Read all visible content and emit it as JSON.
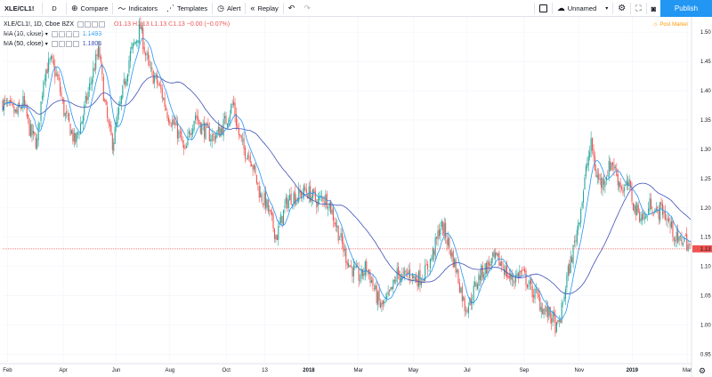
{
  "toolbar": {
    "symbol": "XLE/CL1!",
    "interval": "D",
    "compare": "Compare",
    "indicators": "Indicators",
    "templates": "Templates",
    "alert": "Alert",
    "replay": "Replay",
    "layout_name": "Unnamed",
    "publish": "Publish",
    "icons": [
      "plus-circle-icon",
      "indicators-icon",
      "templates-icon",
      "alert-clock-icon",
      "replay-icon",
      "undo-icon",
      "redo-icon",
      "square-icon",
      "cloud-icon",
      "chevron-down-icon",
      "gear-icon",
      "fullscreen-icon",
      "camera-icon"
    ]
  },
  "legend": {
    "title": "XLE/CL1!, 1D, Cboe BZX",
    "open": "O1.13",
    "high": "H1.13",
    "low": "L1.13",
    "close": "C1.13",
    "change": "−0.00 (−0.07%)",
    "ma10_label": "MA (10, close)",
    "ma10_value": "1.1493",
    "ma50_label": "MA (50, close)",
    "ma50_value": "1.1806",
    "post_market": "Post Market"
  },
  "colors": {
    "up": "#26a69a",
    "down": "#ef5350",
    "ma10": "#2196f3",
    "ma50": "#3f51b5",
    "price_line": "#ef5350",
    "accent": "#2196f3"
  },
  "chart_data": {
    "type": "candlestick",
    "y_ticks": [
      "1.50",
      "1.45",
      "1.40",
      "1.35",
      "1.30",
      "1.25",
      "1.20",
      "1.15",
      "1.10",
      "1.05",
      "1.00",
      "0.95"
    ],
    "ylim": [
      0.94,
      1.52
    ],
    "current_price_label": "1.13",
    "current_price": 1.13,
    "x_ticks": [
      {
        "label": "Feb",
        "t": 0.007,
        "bold": false
      },
      {
        "label": "Apr",
        "t": 0.088,
        "bold": false
      },
      {
        "label": "Jun",
        "t": 0.165,
        "bold": false
      },
      {
        "label": "Aug",
        "t": 0.243,
        "bold": false
      },
      {
        "label": "Oct",
        "t": 0.325,
        "bold": false
      },
      {
        "label": "13",
        "t": 0.381,
        "bold": false
      },
      {
        "label": "2018",
        "t": 0.445,
        "bold": true
      },
      {
        "label": "Mar",
        "t": 0.517,
        "bold": false
      },
      {
        "label": "May",
        "t": 0.597,
        "bold": false
      },
      {
        "label": "Jul",
        "t": 0.675,
        "bold": false
      },
      {
        "label": "Sep",
        "t": 0.758,
        "bold": false
      },
      {
        "label": "Nov",
        "t": 0.838,
        "bold": false
      },
      {
        "label": "2019",
        "t": 0.915,
        "bold": true
      },
      {
        "label": "Mar",
        "t": 0.995,
        "bold": false
      }
    ],
    "close_path": [
      [
        0.0,
        1.38
      ],
      [
        0.01,
        1.37
      ],
      [
        0.02,
        1.36
      ],
      [
        0.03,
        1.38
      ],
      [
        0.04,
        1.33
      ],
      [
        0.05,
        1.31
      ],
      [
        0.06,
        1.43
      ],
      [
        0.07,
        1.45
      ],
      [
        0.08,
        1.42
      ],
      [
        0.09,
        1.36
      ],
      [
        0.1,
        1.33
      ],
      [
        0.105,
        1.31
      ],
      [
        0.115,
        1.35
      ],
      [
        0.125,
        1.4
      ],
      [
        0.133,
        1.44
      ],
      [
        0.14,
        1.47
      ],
      [
        0.148,
        1.38
      ],
      [
        0.155,
        1.33
      ],
      [
        0.16,
        1.31
      ],
      [
        0.165,
        1.34
      ],
      [
        0.175,
        1.4
      ],
      [
        0.185,
        1.46
      ],
      [
        0.195,
        1.49
      ],
      [
        0.2,
        1.51
      ],
      [
        0.208,
        1.46
      ],
      [
        0.215,
        1.43
      ],
      [
        0.222,
        1.42
      ],
      [
        0.23,
        1.4
      ],
      [
        0.24,
        1.36
      ],
      [
        0.25,
        1.34
      ],
      [
        0.258,
        1.32
      ],
      [
        0.265,
        1.29
      ],
      [
        0.272,
        1.33
      ],
      [
        0.28,
        1.36
      ],
      [
        0.288,
        1.34
      ],
      [
        0.296,
        1.33
      ],
      [
        0.305,
        1.32
      ],
      [
        0.315,
        1.33
      ],
      [
        0.325,
        1.35
      ],
      [
        0.335,
        1.38
      ],
      [
        0.342,
        1.33
      ],
      [
        0.35,
        1.3
      ],
      [
        0.36,
        1.29
      ],
      [
        0.368,
        1.25
      ],
      [
        0.375,
        1.22
      ],
      [
        0.382,
        1.21
      ],
      [
        0.39,
        1.18
      ],
      [
        0.398,
        1.15
      ],
      [
        0.405,
        1.18
      ],
      [
        0.413,
        1.21
      ],
      [
        0.42,
        1.22
      ],
      [
        0.43,
        1.22
      ],
      [
        0.44,
        1.23
      ],
      [
        0.45,
        1.22
      ],
      [
        0.458,
        1.21
      ],
      [
        0.466,
        1.22
      ],
      [
        0.474,
        1.21
      ],
      [
        0.482,
        1.18
      ],
      [
        0.49,
        1.15
      ],
      [
        0.498,
        1.12
      ],
      [
        0.505,
        1.1
      ],
      [
        0.512,
        1.09
      ],
      [
        0.52,
        1.08
      ],
      [
        0.528,
        1.1
      ],
      [
        0.535,
        1.08
      ],
      [
        0.543,
        1.05
      ],
      [
        0.55,
        1.03
      ],
      [
        0.558,
        1.04
      ],
      [
        0.566,
        1.06
      ],
      [
        0.574,
        1.09
      ],
      [
        0.582,
        1.08
      ],
      [
        0.59,
        1.09
      ],
      [
        0.598,
        1.08
      ],
      [
        0.606,
        1.08
      ],
      [
        0.614,
        1.09
      ],
      [
        0.622,
        1.11
      ],
      [
        0.63,
        1.14
      ],
      [
        0.636,
        1.17
      ],
      [
        0.642,
        1.16
      ],
      [
        0.65,
        1.13
      ],
      [
        0.658,
        1.1
      ],
      [
        0.666,
        1.06
      ],
      [
        0.672,
        1.03
      ],
      [
        0.68,
        1.04
      ],
      [
        0.688,
        1.07
      ],
      [
        0.696,
        1.09
      ],
      [
        0.704,
        1.1
      ],
      [
        0.712,
        1.11
      ],
      [
        0.72,
        1.11
      ],
      [
        0.728,
        1.1
      ],
      [
        0.736,
        1.08
      ],
      [
        0.744,
        1.08
      ],
      [
        0.752,
        1.09
      ],
      [
        0.76,
        1.08
      ],
      [
        0.768,
        1.06
      ],
      [
        0.776,
        1.05
      ],
      [
        0.784,
        1.03
      ],
      [
        0.792,
        1.02
      ],
      [
        0.8,
        1.01
      ],
      [
        0.806,
        0.99
      ],
      [
        0.812,
        1.02
      ],
      [
        0.82,
        1.08
      ],
      [
        0.828,
        1.12
      ],
      [
        0.836,
        1.17
      ],
      [
        0.843,
        1.22
      ],
      [
        0.85,
        1.28
      ],
      [
        0.856,
        1.31
      ],
      [
        0.862,
        1.26
      ],
      [
        0.87,
        1.24
      ],
      [
        0.878,
        1.26
      ],
      [
        0.886,
        1.28
      ],
      [
        0.894,
        1.25
      ],
      [
        0.902,
        1.23
      ],
      [
        0.91,
        1.24
      ],
      [
        0.918,
        1.2
      ],
      [
        0.926,
        1.19
      ],
      [
        0.934,
        1.18
      ],
      [
        0.942,
        1.21
      ],
      [
        0.95,
        1.19
      ],
      [
        0.958,
        1.2
      ],
      [
        0.966,
        1.18
      ],
      [
        0.974,
        1.16
      ],
      [
        0.982,
        1.14
      ],
      [
        0.99,
        1.15
      ],
      [
        1.0,
        1.13
      ]
    ]
  }
}
